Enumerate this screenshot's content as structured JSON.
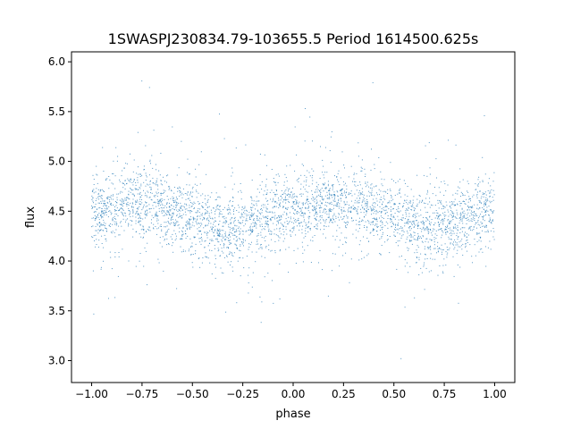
{
  "chart_data": {
    "type": "scatter",
    "title": "1SWASPJ230834.79-103655.5 Period 1614500.625s",
    "xlabel": "phase",
    "ylabel": "flux",
    "xlim": [
      -1.1,
      1.1
    ],
    "ylim": [
      2.78,
      6.1
    ],
    "xticks": [
      -1.0,
      -0.75,
      -0.5,
      -0.25,
      0.0,
      0.25,
      0.5,
      0.75,
      1.0
    ],
    "xtick_labels": [
      "−1.00",
      "−0.75",
      "−0.50",
      "−0.25",
      "0.00",
      "0.25",
      "0.50",
      "0.75",
      "1.00"
    ],
    "yticks": [
      3.0,
      3.5,
      4.0,
      4.5,
      5.0,
      5.5,
      6.0
    ],
    "ytick_labels": [
      "3.0",
      "3.5",
      "4.0",
      "4.5",
      "5.0",
      "5.5",
      "6.0"
    ],
    "grid": false,
    "legend": "none",
    "point_color": "#1f77b4",
    "point_count_note": "dense light curve, phase-folded and mirrored over [-1, 1]",
    "profile": {
      "phase": [
        0.0,
        0.1,
        0.2,
        0.3,
        0.4,
        0.5,
        0.6,
        0.7,
        0.8,
        0.9,
        1.0
      ],
      "median_flux": [
        4.5,
        4.52,
        4.58,
        4.6,
        4.5,
        4.42,
        4.35,
        4.3,
        4.38,
        4.48,
        4.52
      ]
    },
    "x_range": [
      -1.0,
      1.0
    ],
    "y_range": [
      2.9,
      5.95
    ]
  }
}
